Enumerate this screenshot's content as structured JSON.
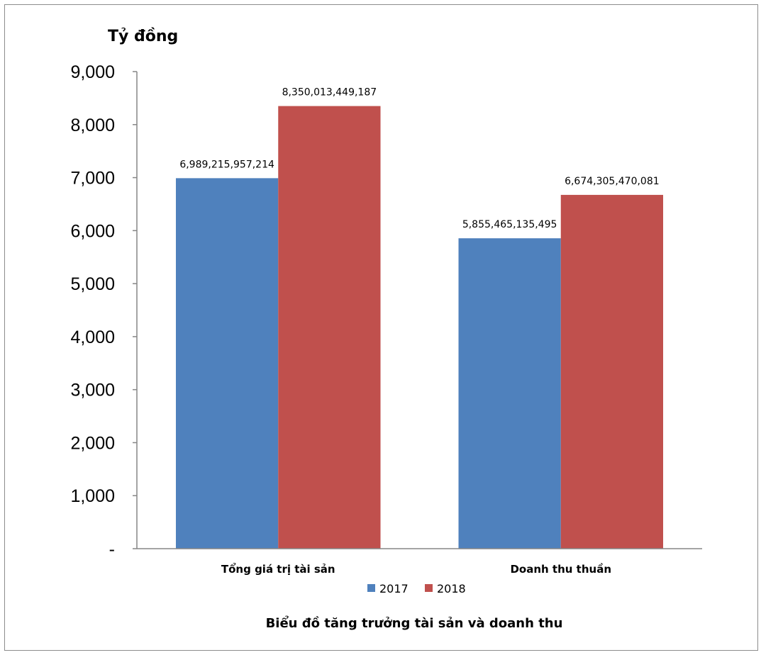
{
  "chart_data": {
    "type": "bar",
    "title": "Biểu đồ tăng trưởng tài sản và doanh thu",
    "ylabel": "Tỷ đồng",
    "xlabel": "",
    "categories": [
      "Tổng giá trị tài sản",
      "Doanh thu thuần"
    ],
    "series": [
      {
        "name": "2017",
        "color": "#4f81bd",
        "values": [
          6989.215957214,
          5855.465135495
        ],
        "labels": [
          "6,989,215,957,214",
          "5,855,465,135,495"
        ]
      },
      {
        "name": "2018",
        "color": "#c0504d",
        "values": [
          8350.013449187,
          6674.305470081
        ],
        "labels": [
          "8,350,013,449,187",
          "6,674,305,470,081"
        ]
      }
    ],
    "ylim": [
      0,
      9000
    ],
    "yticks": [
      {
        "value": 0,
        "label": "-"
      },
      {
        "value": 1000,
        "label": "1,000"
      },
      {
        "value": 2000,
        "label": "2,000"
      },
      {
        "value": 3000,
        "label": "3,000"
      },
      {
        "value": 4000,
        "label": "4,000"
      },
      {
        "value": 5000,
        "label": "5,000"
      },
      {
        "value": 6000,
        "label": "6,000"
      },
      {
        "value": 7000,
        "label": "7,000"
      },
      {
        "value": 8000,
        "label": "8,000"
      },
      {
        "value": 9000,
        "label": "9,000"
      }
    ],
    "grid": false,
    "legend": "bottom"
  }
}
